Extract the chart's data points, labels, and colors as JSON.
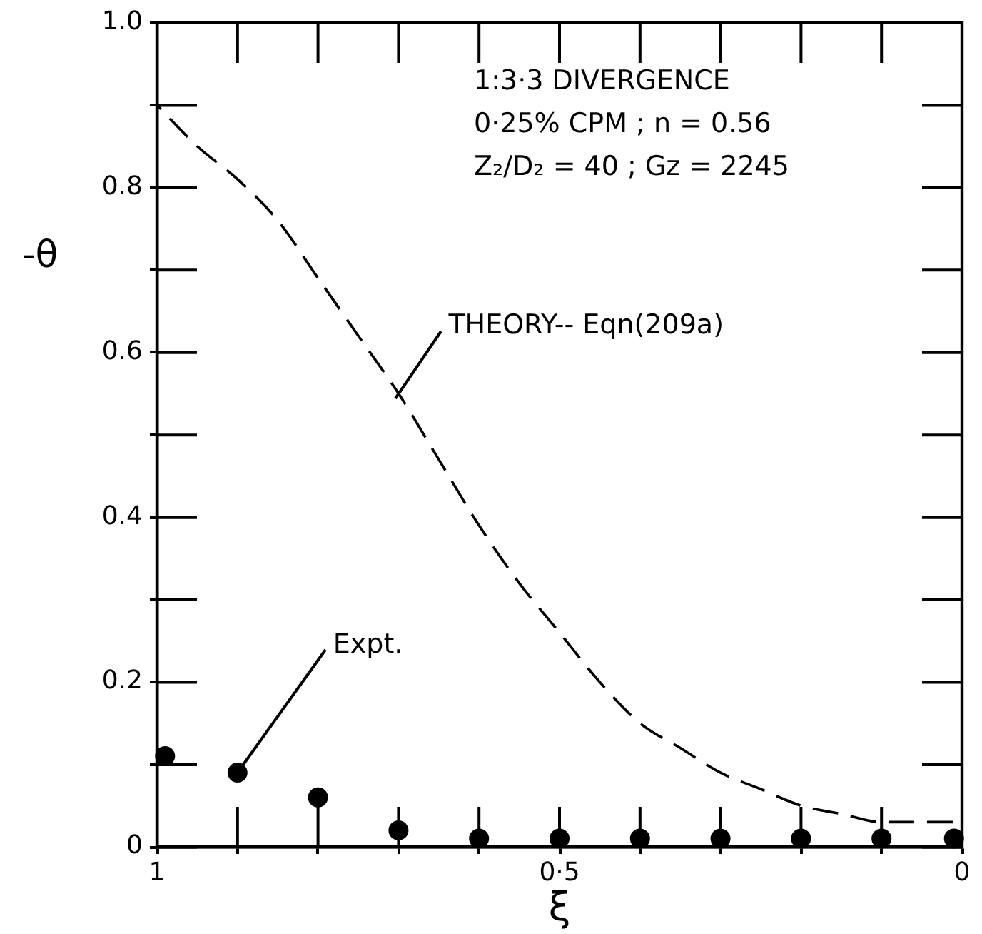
{
  "chart_data": {
    "type": "line",
    "xlabel": "ξ",
    "ylabel": "-θ",
    "annotations": [
      "1:3·3 DIVERGENCE",
      "0·25% CPM ; n = 0.56",
      "Z₂/D₂ = 40 ; Gz = 2245"
    ],
    "xlim": [
      1,
      0
    ],
    "ylim": [
      0,
      1
    ],
    "xticks": [
      1,
      {
        "value": 0.9,
        "label": null
      },
      {
        "value": 0.8,
        "label": null
      },
      {
        "value": 0.7,
        "label": null
      },
      {
        "value": 0.6,
        "label": null
      },
      {
        "value": 0.5,
        "label": "0·5"
      },
      {
        "value": 0.4,
        "label": null
      },
      {
        "value": 0.3,
        "label": null
      },
      {
        "value": 0.2,
        "label": null
      },
      {
        "value": 0.1,
        "label": null
      },
      0
    ],
    "yticks": [
      0,
      {
        "value": 0.1,
        "label": null
      },
      0.2,
      {
        "value": 0.3,
        "label": null
      },
      0.4,
      {
        "value": 0.5,
        "label": null
      },
      0.6,
      {
        "value": 0.7,
        "label": null
      },
      0.8,
      {
        "value": 0.9,
        "label": null
      },
      {
        "value": 1,
        "label": "1.0"
      }
    ],
    "grid": false,
    "legend": false,
    "series": [
      {
        "name": "THEORY-- Eqn(209a)",
        "color": "#000000",
        "line_style": "dashed",
        "marker": "none",
        "x": [
          1,
          0.95,
          0.9,
          0.85,
          0.8,
          0.75,
          0.7,
          0.65,
          0.6,
          0.55,
          0.5,
          0.45,
          0.4,
          0.35,
          0.3,
          0.25,
          0.2,
          0.15,
          0.1,
          0.05,
          0
        ],
        "values": [
          0.9,
          0.85,
          0.81,
          0.76,
          0.69,
          0.62,
          0.55,
          0.47,
          0.39,
          0.32,
          0.26,
          0.2,
          0.15,
          0.12,
          0.09,
          0.07,
          0.05,
          0.04,
          0.03,
          0.03,
          0.03
        ]
      },
      {
        "name": "Expt.",
        "type": "scatter",
        "color": "#000000",
        "marker": "circle",
        "x": [
          0.99,
          0.9,
          0.8,
          0.7,
          0.6,
          0.5,
          0.4,
          0.3,
          0.2,
          0.1,
          0.01
        ],
        "values": [
          0.11,
          0.09,
          0.06,
          0.02,
          0.01,
          0.01,
          0.01,
          0.01,
          0.01,
          0.01,
          0.01
        ]
      }
    ]
  }
}
